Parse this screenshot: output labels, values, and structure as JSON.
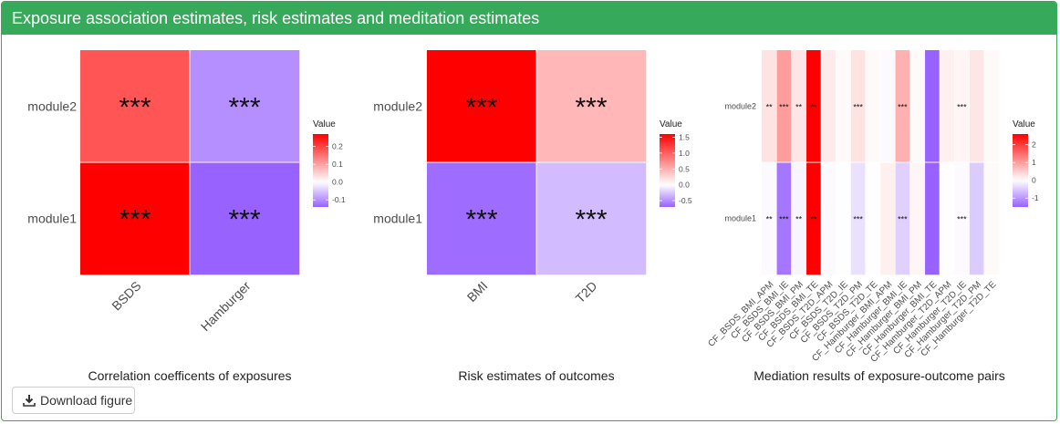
{
  "header": {
    "title": "Exposure association estimates, risk estimates and meditation estimates"
  },
  "download": {
    "label": "Download figure",
    "icon": "download-icon"
  },
  "chart_data": [
    {
      "type": "heatmap",
      "title": "Correlation coefficents of exposures",
      "x_categories": [
        "BSDS",
        "Hamburger"
      ],
      "y_categories": [
        "module1",
        "module2"
      ],
      "values": [
        [
          0.27,
          -0.14
        ],
        [
          0.18,
          -0.1
        ]
      ],
      "labels": [
        [
          "***",
          "***"
        ],
        [
          "***",
          "***"
        ]
      ],
      "legend": {
        "title": "Value",
        "ticks": [
          0.2,
          0.1,
          0.0,
          -0.1
        ],
        "tick_labels": [
          "0.2",
          "0.1",
          "0.0",
          "-0.1"
        ],
        "min": -0.14,
        "max": 0.27,
        "placement": "right"
      }
    },
    {
      "type": "heatmap",
      "title": "Risk estimates of outcomes",
      "x_categories": [
        "BMI",
        "T2D"
      ],
      "y_categories": [
        "module1",
        "module2"
      ],
      "values": [
        [
          -0.65,
          -0.3
        ],
        [
          1.6,
          0.45
        ]
      ],
      "labels": [
        [
          "***",
          "***"
        ],
        [
          "***",
          "***"
        ]
      ],
      "legend": {
        "title": "Value",
        "ticks": [
          1.5,
          1.0,
          0.5,
          0.0,
          -0.5
        ],
        "tick_labels": [
          "1.5",
          "1.0",
          "0.5",
          "0.0",
          "-0.5"
        ],
        "min": -0.7,
        "max": 1.6,
        "placement": "right"
      }
    },
    {
      "type": "heatmap",
      "title": "Mediation results of exposure-outcome pairs",
      "x_categories": [
        "CF_BSDS_BMI_APM",
        "CF_BSDS_BMI_IE",
        "CF_BSDS_BMI_PM",
        "CF_BSDS_BMI_TE",
        "CF_BSDS_T2D_APM",
        "CF_BSDS_T2D_IE",
        "CF_BSDS_T2D_PM",
        "CF_BSDS_T2D_TE",
        "CF_Hamburger_BMI_APM",
        "CF_Hamburger_BMI_IE",
        "CF_Hamburger_BMI_PM",
        "CF_Hamburger_BMI_TE",
        "CF_Hamburger_T2D_APM",
        "CF_Hamburger_T2D_IE",
        "CF_Hamburger_T2D_PM",
        "CF_Hamburger_T2D_TE"
      ],
      "y_categories": [
        "module1",
        "module2"
      ],
      "values": [
        [
          -0.05,
          -1.3,
          -0.1,
          2.6,
          -0.05,
          -0.02,
          -0.3,
          -0.02,
          0.15,
          -0.45,
          0.1,
          -1.5,
          -0.02,
          -0.05,
          -0.5,
          0.05
        ],
        [
          0.3,
          1.0,
          0.25,
          2.6,
          0.2,
          0.05,
          0.3,
          0.05,
          -0.05,
          0.8,
          0.05,
          -1.5,
          0.15,
          0.1,
          0.25,
          0.05
        ]
      ],
      "labels": [
        [
          "**",
          "***",
          "**",
          "**",
          "",
          "",
          "***",
          "",
          "",
          "***",
          "",
          "",
          "",
          "***",
          "",
          ""
        ],
        [
          "**",
          "***",
          "**",
          "**",
          "",
          "",
          "***",
          "",
          "",
          "***",
          "",
          "",
          "",
          "***",
          "",
          ""
        ]
      ],
      "legend": {
        "title": "Value",
        "ticks": [
          2,
          1,
          0,
          -1
        ],
        "tick_labels": [
          "2",
          "1",
          "0",
          "-1"
        ],
        "min": -1.5,
        "max": 2.6,
        "placement": "right"
      }
    }
  ]
}
